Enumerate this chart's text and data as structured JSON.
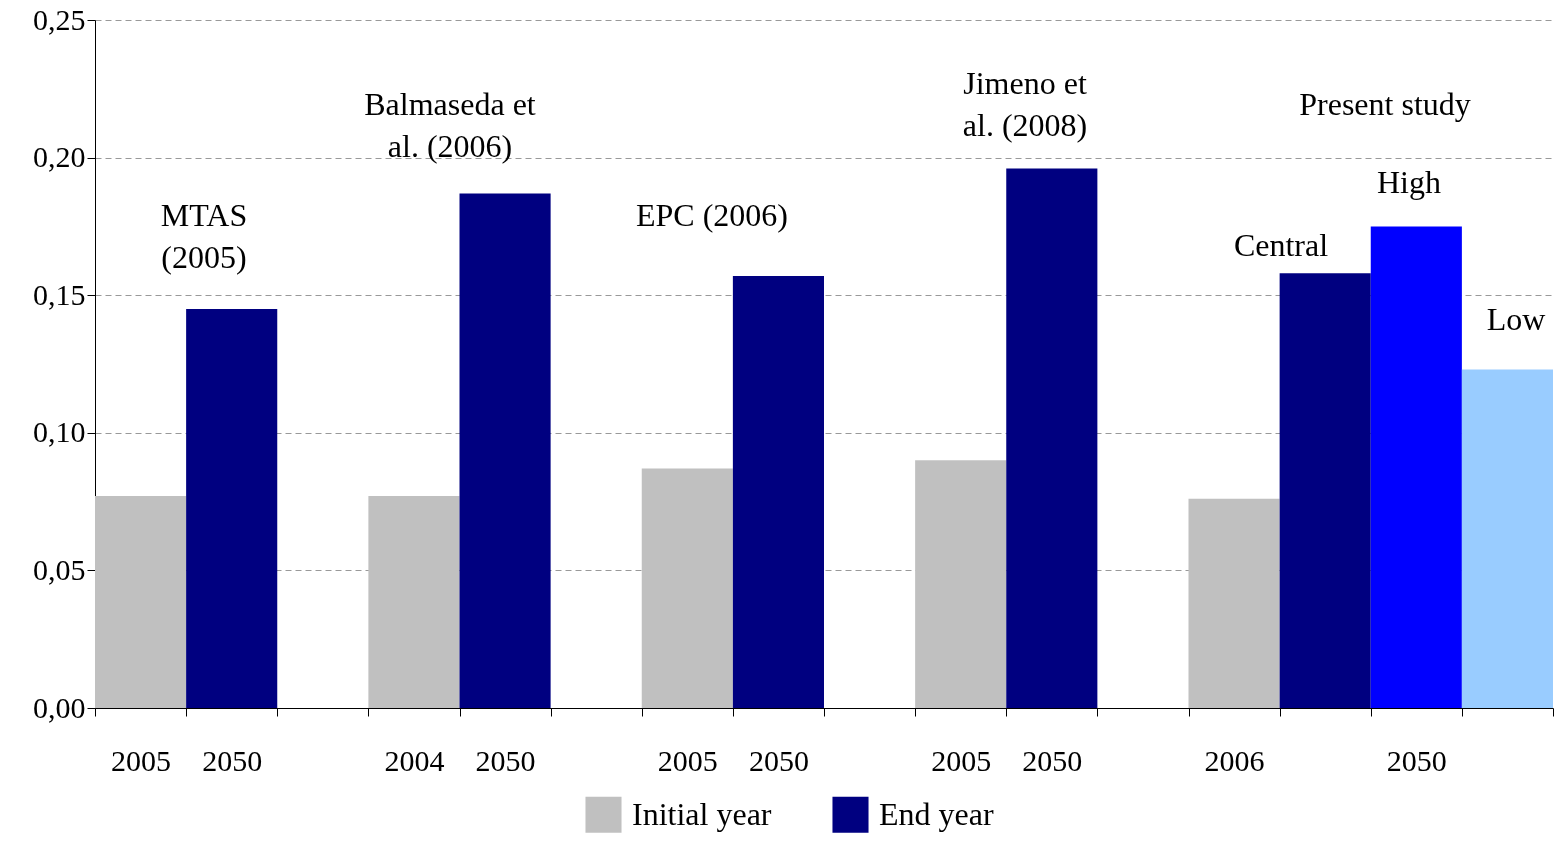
{
  "chart_data": {
    "type": "bar",
    "categories": [
      "2005",
      "2050",
      null,
      "2004",
      "2050",
      null,
      "2005",
      "2050",
      null,
      "2005",
      "2050",
      null,
      "2006",
      null,
      "2050",
      null
    ],
    "series": [
      {
        "name": "Initial year",
        "color": "#c0c0c0",
        "values": [
          0.077,
          null,
          null,
          0.077,
          null,
          null,
          0.087,
          null,
          null,
          0.09,
          null,
          null,
          0.076,
          null,
          null,
          null
        ]
      },
      {
        "name": "End year",
        "color": "#000080",
        "values": [
          null,
          0.145,
          null,
          null,
          0.187,
          null,
          null,
          0.157,
          null,
          null,
          0.196,
          null,
          null,
          0.158,
          0.175,
          0.123
        ],
        "colors": [
          null,
          "#000080",
          null,
          null,
          "#000080",
          null,
          null,
          "#000080",
          null,
          null,
          "#000080",
          null,
          null,
          "#000080",
          "#0000ff",
          "#99ccff"
        ]
      }
    ],
    "ylim": [
      0,
      0.25
    ],
    "yticks": [
      {
        "value": 0,
        "label": "0,00"
      },
      {
        "value": 0.05,
        "label": "0,05"
      },
      {
        "value": 0.1,
        "label": "0,10"
      },
      {
        "value": 0.15,
        "label": "0,15"
      },
      {
        "value": 0.2,
        "label": "0,20"
      },
      {
        "value": 0.25,
        "label": "0,25"
      }
    ],
    "grid": "y",
    "legend": "bottom",
    "annotations": [
      "MTAS (2005)",
      "Balmaseda et al. (2006)",
      "EPC (2006)",
      "Jimeno et al. (2008)",
      "Present study",
      "Central",
      "High",
      "Low"
    ]
  }
}
